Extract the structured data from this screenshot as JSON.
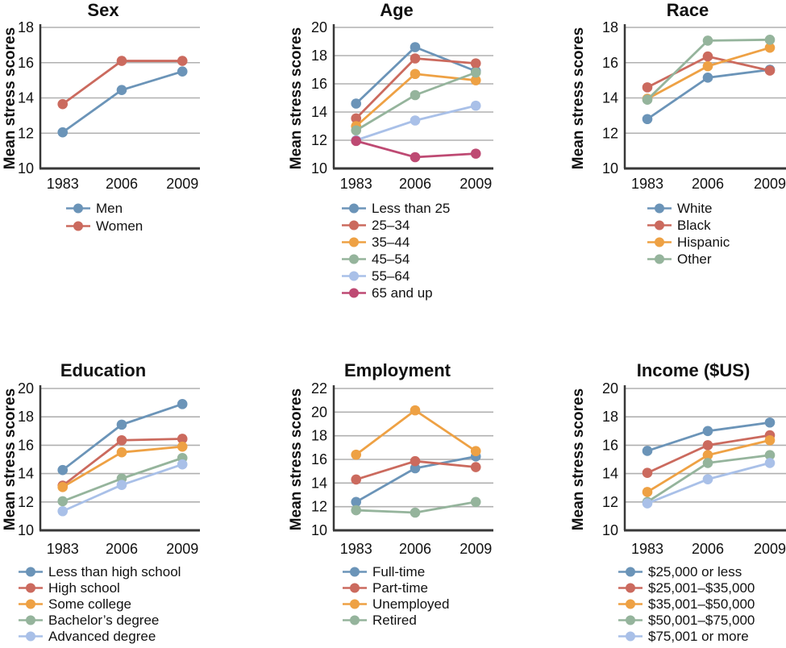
{
  "figure": {
    "background": "#ffffff",
    "description": "Six line charts of mean stress scores by demographic group for years 1983, 2006 and 2009"
  },
  "palette": {
    "blue": "#6b94b8",
    "red": "#cb6a5e",
    "orange": "#eea144",
    "green": "#95b49c",
    "periwinkle": "#a9c0e8",
    "magenta": "#be4a73",
    "grid": "#b0b0b0",
    "axis": "#383838",
    "text": "#111111"
  },
  "chart_data": [
    {
      "id": "sex",
      "type": "line",
      "title": "Sex",
      "ylabel": "Mean stress scores",
      "xlabel": "",
      "categories": [
        "1983",
        "2006",
        "2009"
      ],
      "ylim": [
        10,
        18
      ],
      "yticks": [
        10,
        12,
        14,
        16,
        18
      ],
      "grid": true,
      "legend_position": "below",
      "series": [
        {
          "name": "Men",
          "color": "blue",
          "values": [
            12.05,
            14.45,
            15.5
          ]
        },
        {
          "name": "Women",
          "color": "red",
          "values": [
            13.65,
            16.1,
            16.1
          ]
        }
      ]
    },
    {
      "id": "age",
      "type": "line",
      "title": "Age",
      "ylabel": "Mean stress scores",
      "xlabel": "",
      "categories": [
        "1983",
        "2006",
        "2009"
      ],
      "ylim": [
        10,
        20
      ],
      "yticks": [
        10,
        12,
        14,
        16,
        18,
        20
      ],
      "grid": true,
      "legend_position": "below",
      "series": [
        {
          "name": "Less than 25",
          "color": "blue",
          "values": [
            14.6,
            18.6,
            16.9
          ]
        },
        {
          "name": "25–34",
          "color": "red",
          "values": [
            13.55,
            17.8,
            17.45
          ]
        },
        {
          "name": "35–44",
          "color": "orange",
          "values": [
            13.0,
            16.7,
            16.25
          ]
        },
        {
          "name": "45–54",
          "color": "green",
          "values": [
            12.7,
            15.2,
            16.8
          ]
        },
        {
          "name": "55–64",
          "color": "periwinkle",
          "values": [
            12.0,
            13.4,
            14.45
          ]
        },
        {
          "name": "65 and up",
          "color": "magenta",
          "values": [
            11.95,
            10.8,
            11.05
          ]
        }
      ]
    },
    {
      "id": "race",
      "type": "line",
      "title": "Race",
      "ylabel": "Mean stress scores",
      "xlabel": "",
      "categories": [
        "1983",
        "2006",
        "2009"
      ],
      "ylim": [
        10,
        18
      ],
      "yticks": [
        10,
        12,
        14,
        16,
        18
      ],
      "grid": true,
      "legend_position": "below",
      "series": [
        {
          "name": "White",
          "color": "blue",
          "values": [
            12.8,
            15.15,
            15.6
          ]
        },
        {
          "name": "Black",
          "color": "red",
          "values": [
            14.6,
            16.35,
            15.55
          ]
        },
        {
          "name": "Hispanic",
          "color": "orange",
          "values": [
            13.95,
            15.8,
            16.85
          ]
        },
        {
          "name": "Other",
          "color": "green",
          "values": [
            13.9,
            17.25,
            17.3
          ]
        }
      ]
    },
    {
      "id": "education",
      "type": "line",
      "title": "Education",
      "ylabel": "Mean stress scores",
      "xlabel": "",
      "categories": [
        "1983",
        "2006",
        "2009"
      ],
      "ylim": [
        10,
        20
      ],
      "yticks": [
        10,
        12,
        14,
        16,
        18,
        20
      ],
      "grid": true,
      "legend_position": "below",
      "series": [
        {
          "name": "Less than high school",
          "color": "blue",
          "values": [
            14.25,
            17.45,
            18.9
          ]
        },
        {
          "name": "High school",
          "color": "red",
          "values": [
            13.15,
            16.35,
            16.45
          ]
        },
        {
          "name": "Some college",
          "color": "orange",
          "values": [
            13.05,
            15.5,
            15.9
          ]
        },
        {
          "name": "Bachelor’s degree",
          "color": "green",
          "values": [
            12.05,
            13.65,
            15.1
          ]
        },
        {
          "name": "Advanced degree",
          "color": "periwinkle",
          "values": [
            11.35,
            13.2,
            14.65
          ]
        }
      ]
    },
    {
      "id": "employment",
      "type": "line",
      "title": "Employment",
      "ylabel": "Mean stress scores",
      "xlabel": "",
      "categories": [
        "1983",
        "2006",
        "2009"
      ],
      "ylim": [
        10,
        22
      ],
      "yticks": [
        10,
        12,
        14,
        16,
        18,
        20,
        22
      ],
      "grid": true,
      "legend_position": "below",
      "series": [
        {
          "name": "Full-time",
          "color": "blue",
          "values": [
            12.4,
            15.25,
            16.25
          ]
        },
        {
          "name": "Part-time",
          "color": "red",
          "values": [
            14.3,
            15.85,
            15.35
          ]
        },
        {
          "name": "Unemployed",
          "color": "orange",
          "values": [
            16.4,
            20.15,
            16.7
          ]
        },
        {
          "name": "Retired",
          "color": "green",
          "values": [
            11.7,
            11.5,
            12.4
          ]
        }
      ]
    },
    {
      "id": "income",
      "type": "line",
      "title": "Income ($US)",
      "ylabel": "Mean stress scores",
      "xlabel": "",
      "categories": [
        "1983",
        "2006",
        "2009"
      ],
      "ylim": [
        10,
        20
      ],
      "yticks": [
        10,
        12,
        14,
        16,
        18,
        20
      ],
      "grid": true,
      "legend_position": "below",
      "series": [
        {
          "name": "$25,000 or less",
          "color": "blue",
          "values": [
            15.6,
            17.0,
            17.6
          ]
        },
        {
          "name": "$25,001–$35,000",
          "color": "red",
          "values": [
            14.05,
            16.0,
            16.7
          ]
        },
        {
          "name": "$35,001–$50,000",
          "color": "orange",
          "values": [
            12.7,
            15.3,
            16.35
          ]
        },
        {
          "name": "$50,001–$75,000",
          "color": "green",
          "values": [
            12.0,
            14.75,
            15.3
          ]
        },
        {
          "name": "$75,001 or more",
          "color": "periwinkle",
          "values": [
            11.9,
            13.6,
            14.75
          ]
        }
      ]
    }
  ]
}
